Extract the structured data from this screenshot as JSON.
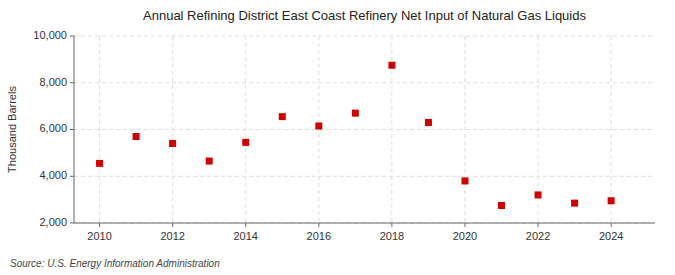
{
  "chart_data": {
    "type": "scatter",
    "title": "Annual Refining District East Coast Refinery Net Input of Natural Gas Liquids",
    "y_label": "Thousand Barrels",
    "source": "Source: U.S. Energy Information Administration",
    "x": [
      2010,
      2011,
      2012,
      2013,
      2014,
      2015,
      2016,
      2017,
      2018,
      2019,
      2020,
      2021,
      2022,
      2023,
      2024
    ],
    "values": [
      4550,
      5700,
      5400,
      4650,
      5450,
      6550,
      6150,
      6700,
      8750,
      6300,
      3800,
      2750,
      3200,
      2850,
      2950
    ],
    "color": "#cc0000",
    "marker": "square",
    "xlim": [
      2009.3,
      2025.2
    ],
    "xticks": [
      2010,
      2012,
      2014,
      2016,
      2018,
      2020,
      2022,
      2024
    ],
    "ylim": [
      2000,
      10000
    ],
    "yticks": [
      {
        "value": 2000,
        "label": "2,000"
      },
      {
        "value": 4000,
        "label": "4,000"
      },
      {
        "value": 6000,
        "label": "6,000"
      },
      {
        "value": 8000,
        "label": "8,000"
      },
      {
        "value": 10000,
        "label": "10,000"
      }
    ],
    "grid": true
  }
}
